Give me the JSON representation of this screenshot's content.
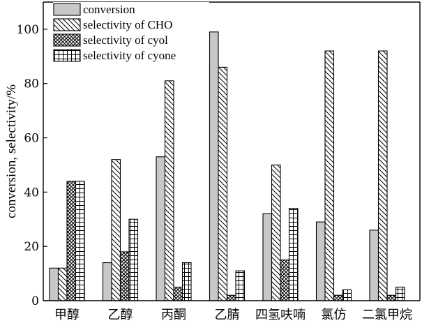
{
  "chart_data": {
    "type": "bar",
    "title": "",
    "xlabel": "",
    "ylabel": "conversion, selectivity/%",
    "ylim": [
      0,
      110
    ],
    "yticks": [
      0,
      20,
      40,
      60,
      80,
      100
    ],
    "grid": false,
    "legend_position": "top",
    "categories": [
      "甲醇",
      "乙醇",
      "丙酮",
      "乙腈",
      "四氢呋喃",
      "氯仿",
      "二氯甲烷"
    ],
    "series": [
      {
        "name": "conversion",
        "pattern": "solid-gray",
        "color": "#c8c8c8",
        "values": [
          12,
          14,
          53,
          99,
          32,
          29,
          26
        ]
      },
      {
        "name": "selectivity of CHO",
        "pattern": "diagonal-hatch",
        "color": "#ffffff",
        "values": [
          12,
          52,
          81,
          86,
          50,
          92,
          92
        ]
      },
      {
        "name": "selectivity of cyol",
        "pattern": "crosshatch",
        "color": "#ffffff",
        "values": [
          44,
          18,
          5,
          2,
          15,
          2,
          2
        ]
      },
      {
        "name": "selectivity of cyone",
        "pattern": "grid",
        "color": "#ffffff",
        "values": [
          44,
          30,
          14,
          11,
          34,
          4,
          5
        ]
      }
    ]
  }
}
